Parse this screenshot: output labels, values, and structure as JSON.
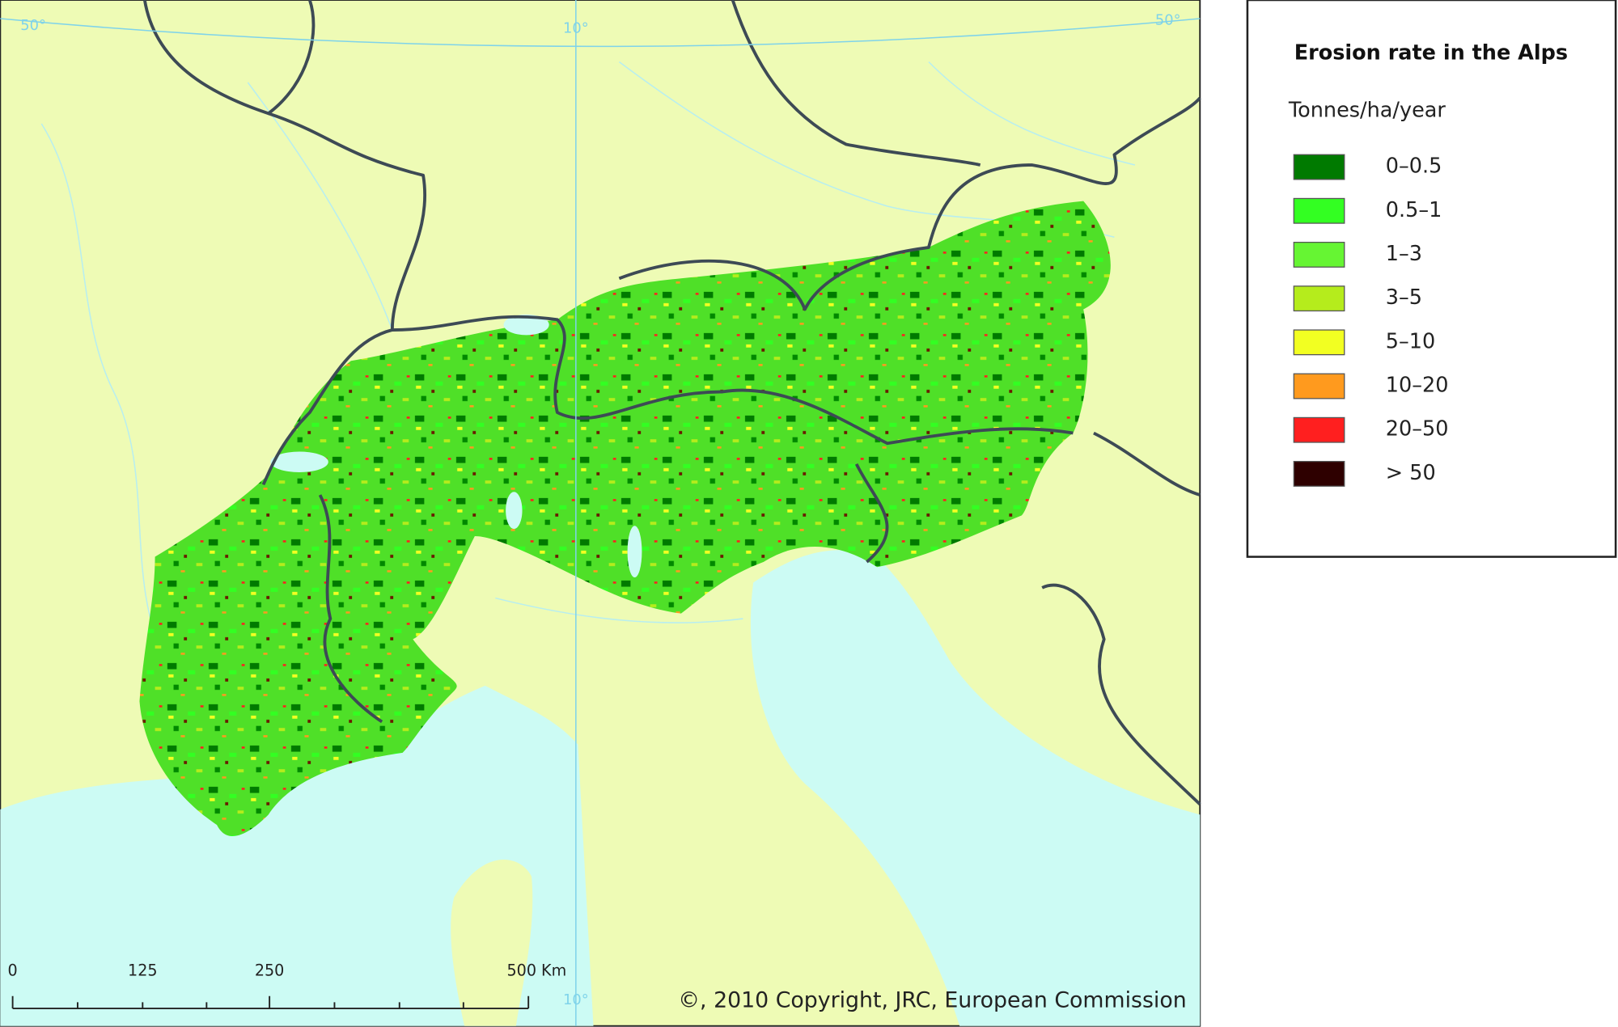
{
  "map": {
    "graticule_labels": [
      "50°",
      "10°",
      "50°",
      "10°"
    ],
    "scale_bar": {
      "labels": [
        "0",
        "125",
        "250",
        "500 Km"
      ]
    },
    "copyright": "©, 2010 Copyright, JRC, European Commission"
  },
  "legend": {
    "title": "Erosion rate in the Alps",
    "unit": "Tonnes/ha/year",
    "items": [
      {
        "label": "0–0.5",
        "color": "#007a00"
      },
      {
        "label": "0.5–1",
        "color": "#33ff22"
      },
      {
        "label": "1–3",
        "color": "#66f533"
      },
      {
        "label": "3–5",
        "color": "#b5ec1c"
      },
      {
        "label": "5–10",
        "color": "#f2ff22"
      },
      {
        "label": "10–20",
        "color": "#ff9a1e"
      },
      {
        "label": "20–50",
        "color": "#ff1f1f"
      },
      {
        "label": "> 50",
        "color": "#2e0000"
      }
    ]
  }
}
